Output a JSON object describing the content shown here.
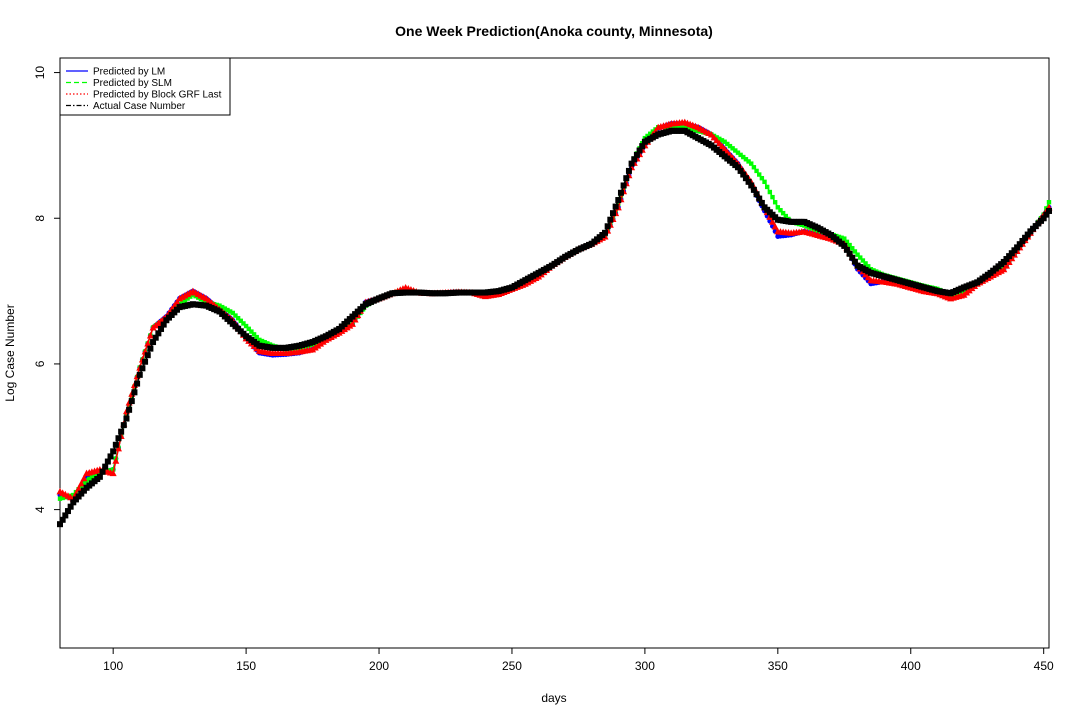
{
  "chart_data": {
    "type": "line",
    "title": "One Week Prediction(Anoka county, Minnesota)",
    "xlabel": "days",
    "ylabel": "Log Case Number",
    "xlim": [
      80,
      452
    ],
    "ylim": [
      2.1,
      10.2
    ],
    "x_ticks": [
      100,
      150,
      200,
      250,
      300,
      350,
      400,
      450
    ],
    "y_ticks": [
      4,
      6,
      8,
      10
    ],
    "legend_position": "top-left",
    "legend": [
      {
        "label": "Predicted by LM",
        "color": "#0000FF",
        "line_style": "solid"
      },
      {
        "label": "Predicted by SLM",
        "color": "#00FF00",
        "line_style": "dashed"
      },
      {
        "label": "Predicted by Block GRF Last",
        "color": "#FF0000",
        "line_style": "dotted"
      },
      {
        "label": "Actual Case Number",
        "color": "#000000",
        "line_style": "dotdash"
      }
    ],
    "series": [
      {
        "name": "Predicted by LM",
        "color": "#0000FF",
        "marker": "circle",
        "x": [
          80,
          85,
          90,
          95,
          100,
          105,
          110,
          115,
          120,
          125,
          130,
          135,
          140,
          145,
          150,
          155,
          160,
          165,
          170,
          175,
          180,
          185,
          190,
          195,
          200,
          205,
          210,
          215,
          220,
          225,
          230,
          235,
          240,
          245,
          250,
          255,
          260,
          265,
          270,
          275,
          280,
          285,
          290,
          295,
          300,
          305,
          310,
          315,
          320,
          325,
          330,
          335,
          340,
          345,
          350,
          355,
          360,
          365,
          370,
          375,
          380,
          385,
          390,
          395,
          400,
          405,
          410,
          415,
          420,
          425,
          430,
          435,
          440,
          445,
          450,
          452
        ],
        "y": [
          4.2,
          4.15,
          4.45,
          4.5,
          4.55,
          5.3,
          5.95,
          6.5,
          6.65,
          6.9,
          7.0,
          6.9,
          6.75,
          6.6,
          6.35,
          6.15,
          6.12,
          6.13,
          6.15,
          6.2,
          6.33,
          6.43,
          6.55,
          6.85,
          6.9,
          6.97,
          7.02,
          6.98,
          6.97,
          6.98,
          6.99,
          6.98,
          6.93,
          6.96,
          7.03,
          7.1,
          7.2,
          7.35,
          7.47,
          7.58,
          7.65,
          7.75,
          8.15,
          8.7,
          9.0,
          9.23,
          9.3,
          9.3,
          9.25,
          9.15,
          8.95,
          8.75,
          8.45,
          8.1,
          7.75,
          7.77,
          7.82,
          7.77,
          7.72,
          7.65,
          7.3,
          7.1,
          7.13,
          7.1,
          7.05,
          7.0,
          6.98,
          6.9,
          6.95,
          7.1,
          7.2,
          7.3,
          7.55,
          7.8,
          8.05,
          8.15
        ]
      },
      {
        "name": "Predicted by SLM",
        "color": "#00FF00",
        "marker": "square",
        "x": [
          80,
          85,
          90,
          95,
          100,
          105,
          110,
          115,
          120,
          125,
          130,
          135,
          140,
          145,
          150,
          155,
          160,
          165,
          170,
          175,
          180,
          185,
          190,
          195,
          200,
          205,
          210,
          215,
          220,
          225,
          230,
          235,
          240,
          245,
          250,
          255,
          260,
          265,
          270,
          275,
          280,
          285,
          290,
          295,
          300,
          305,
          310,
          315,
          320,
          325,
          330,
          335,
          340,
          345,
          350,
          355,
          360,
          365,
          370,
          375,
          380,
          385,
          390,
          395,
          400,
          405,
          410,
          415,
          420,
          425,
          430,
          435,
          440,
          445,
          450,
          452
        ],
        "y": [
          4.15,
          4.2,
          4.4,
          4.5,
          4.55,
          5.3,
          5.95,
          6.5,
          6.62,
          6.82,
          6.95,
          6.85,
          6.8,
          6.7,
          6.52,
          6.33,
          6.25,
          6.2,
          6.22,
          6.27,
          6.33,
          6.45,
          6.55,
          6.8,
          6.9,
          6.97,
          7.02,
          6.98,
          6.97,
          6.98,
          6.98,
          6.98,
          6.95,
          6.97,
          7.03,
          7.1,
          7.2,
          7.35,
          7.47,
          7.58,
          7.65,
          7.75,
          8.2,
          8.75,
          9.1,
          9.25,
          9.25,
          9.25,
          9.2,
          9.15,
          9.05,
          8.9,
          8.75,
          8.5,
          8.15,
          7.95,
          7.9,
          7.83,
          7.78,
          7.72,
          7.5,
          7.3,
          7.22,
          7.17,
          7.12,
          7.07,
          7.03,
          6.95,
          6.98,
          7.1,
          7.2,
          7.3,
          7.55,
          7.8,
          8.05,
          8.22
        ]
      },
      {
        "name": "Predicted by Block GRF Last",
        "color": "#FF0000",
        "marker": "triangle",
        "x": [
          80,
          85,
          90,
          95,
          100,
          105,
          110,
          115,
          120,
          125,
          130,
          135,
          140,
          145,
          150,
          155,
          160,
          165,
          170,
          175,
          180,
          185,
          190,
          195,
          200,
          205,
          210,
          215,
          220,
          225,
          230,
          235,
          240,
          245,
          250,
          255,
          260,
          265,
          270,
          275,
          280,
          285,
          290,
          295,
          300,
          305,
          310,
          315,
          320,
          325,
          330,
          335,
          340,
          345,
          350,
          355,
          360,
          365,
          370,
          375,
          380,
          385,
          390,
          395,
          400,
          405,
          410,
          415,
          420,
          425,
          430,
          435,
          440,
          445,
          450,
          452
        ],
        "y": [
          4.25,
          4.15,
          4.5,
          4.55,
          4.5,
          5.35,
          5.95,
          6.5,
          6.65,
          6.9,
          7.0,
          6.9,
          6.75,
          6.6,
          6.35,
          6.18,
          6.15,
          6.15,
          6.17,
          6.2,
          6.33,
          6.43,
          6.55,
          6.85,
          6.9,
          6.97,
          7.05,
          6.98,
          6.97,
          6.98,
          6.99,
          6.98,
          6.93,
          6.96,
          7.03,
          7.1,
          7.2,
          7.35,
          7.47,
          7.58,
          7.65,
          7.75,
          8.15,
          8.7,
          9.0,
          9.25,
          9.3,
          9.32,
          9.25,
          9.15,
          8.95,
          8.75,
          8.5,
          8.15,
          7.82,
          7.8,
          7.82,
          7.77,
          7.72,
          7.65,
          7.35,
          7.15,
          7.13,
          7.1,
          7.05,
          7.0,
          6.97,
          6.9,
          6.95,
          7.1,
          7.2,
          7.3,
          7.55,
          7.8,
          8.05,
          8.15
        ]
      },
      {
        "name": "Actual Case Number",
        "color": "#000000",
        "marker": "square",
        "x": [
          80,
          85,
          90,
          95,
          100,
          105,
          110,
          115,
          120,
          125,
          130,
          135,
          140,
          145,
          150,
          155,
          160,
          165,
          170,
          175,
          180,
          185,
          190,
          195,
          200,
          205,
          210,
          215,
          220,
          225,
          230,
          235,
          240,
          245,
          250,
          255,
          260,
          265,
          270,
          275,
          280,
          285,
          290,
          295,
          300,
          305,
          310,
          315,
          320,
          325,
          330,
          335,
          340,
          345,
          350,
          355,
          360,
          365,
          370,
          375,
          380,
          385,
          390,
          395,
          400,
          405,
          410,
          415,
          420,
          425,
          430,
          435,
          440,
          445,
          450,
          452
        ],
        "y": [
          3.8,
          4.1,
          4.3,
          4.45,
          4.8,
          5.25,
          5.85,
          6.3,
          6.6,
          6.78,
          6.82,
          6.8,
          6.72,
          6.55,
          6.38,
          6.25,
          6.22,
          6.22,
          6.25,
          6.3,
          6.38,
          6.48,
          6.65,
          6.82,
          6.9,
          6.97,
          6.98,
          6.98,
          6.97,
          6.97,
          6.98,
          6.98,
          6.98,
          7.0,
          7.05,
          7.15,
          7.25,
          7.35,
          7.47,
          7.57,
          7.65,
          7.8,
          8.25,
          8.75,
          9.05,
          9.15,
          9.2,
          9.2,
          9.1,
          9.0,
          8.85,
          8.7,
          8.45,
          8.15,
          7.98,
          7.95,
          7.95,
          7.87,
          7.77,
          7.62,
          7.35,
          7.25,
          7.2,
          7.15,
          7.1,
          7.05,
          7.0,
          6.97,
          7.05,
          7.12,
          7.25,
          7.4,
          7.6,
          7.82,
          8.0,
          8.1
        ]
      }
    ]
  }
}
